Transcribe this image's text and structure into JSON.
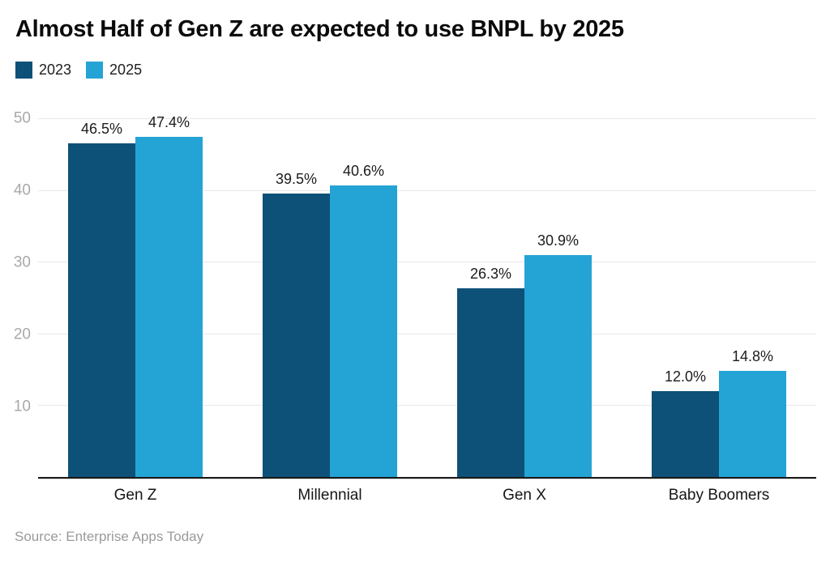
{
  "chart": {
    "title": "Almost Half of Gen Z are expected to use BNPL by 2025",
    "source": "Source: Enterprise Apps Today"
  },
  "chart_data": {
    "type": "bar",
    "title": "Almost Half of Gen Z are expected to use BNPL by 2025",
    "categories": [
      "Gen Z",
      "Millennial",
      "Gen X",
      "Baby Boomers"
    ],
    "series": [
      {
        "name": "2023",
        "color": "#0e5178",
        "values": [
          46.5,
          39.5,
          26.3,
          12.0
        ]
      },
      {
        "name": "2025",
        "color": "#24a3d5",
        "values": [
          47.4,
          40.6,
          30.9,
          14.8
        ]
      }
    ],
    "value_suffix": "%",
    "value_labels": true,
    "xlabel": "",
    "ylabel": "",
    "ylim": [
      0,
      50
    ],
    "yticks": [
      10,
      20,
      30,
      40,
      50
    ],
    "grid": true,
    "legend_position": "top-left",
    "colors": {
      "title_text": "#0b0b0b",
      "tick_text": "#a8a8a8",
      "category_text": "#161616",
      "gridline": "#e8e8e8",
      "axis_line": "#1a1a1a",
      "source_text": "#9a9a9a",
      "background": "#ffffff"
    }
  }
}
